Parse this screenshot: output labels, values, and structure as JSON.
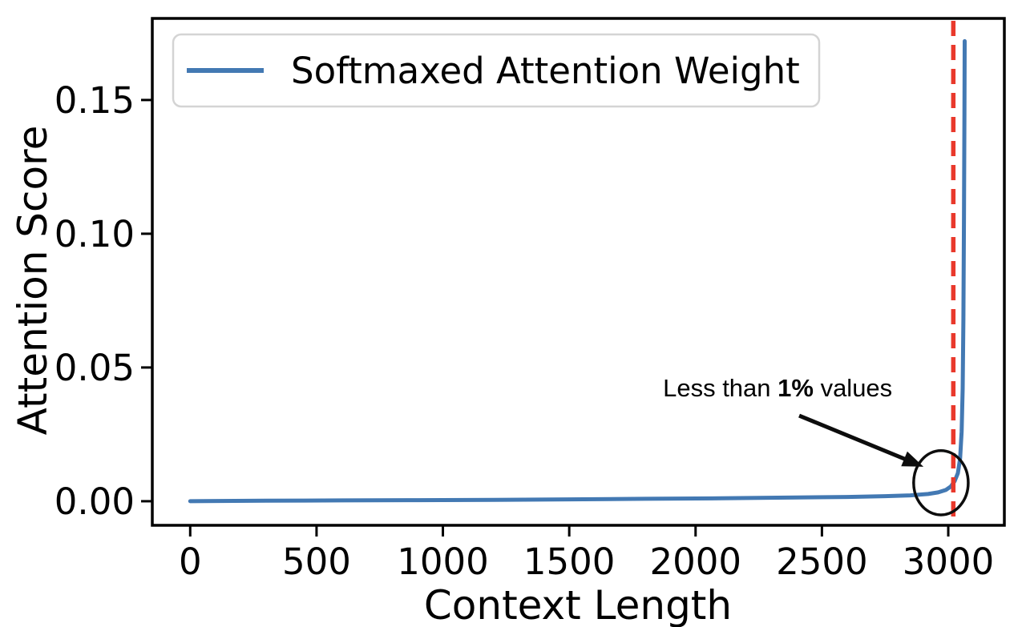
{
  "chart_data": {
    "type": "line",
    "title": "",
    "xlabel": "Context Length",
    "ylabel": "Attention Score",
    "xlim": [
      -150,
      3222
    ],
    "ylim": [
      -0.009,
      0.1805
    ],
    "grid": false,
    "x_ticks": [
      {
        "value": 0,
        "label": "0"
      },
      {
        "value": 500,
        "label": "500"
      },
      {
        "value": 1000,
        "label": "1000"
      },
      {
        "value": 1500,
        "label": "1500"
      },
      {
        "value": 2000,
        "label": "2000"
      },
      {
        "value": 2500,
        "label": "2500"
      },
      {
        "value": 3000,
        "label": "3000"
      }
    ],
    "y_ticks": [
      {
        "value": 0.0,
        "label": "0.00"
      },
      {
        "value": 0.05,
        "label": "0.05"
      },
      {
        "value": 0.1,
        "label": "0.10"
      },
      {
        "value": 0.15,
        "label": "0.15"
      }
    ],
    "legend": {
      "position": "upper left",
      "label": "Softmaxed Attention Weight"
    },
    "series": [
      {
        "name": "Softmaxed Attention Weight",
        "color": "#4379b3",
        "line_width": 5,
        "points": [
          [
            0,
            0.0
          ],
          [
            300,
            0.0002
          ],
          [
            600,
            0.0003
          ],
          [
            900,
            0.0004
          ],
          [
            1200,
            0.0005
          ],
          [
            1500,
            0.0007
          ],
          [
            1800,
            0.0009
          ],
          [
            2100,
            0.0011
          ],
          [
            2400,
            0.0014
          ],
          [
            2600,
            0.0016
          ],
          [
            2750,
            0.0019
          ],
          [
            2850,
            0.0022
          ],
          [
            2920,
            0.0027
          ],
          [
            2960,
            0.0033
          ],
          [
            2990,
            0.0042
          ],
          [
            3010,
            0.0055
          ],
          [
            3025,
            0.0075
          ],
          [
            3038,
            0.0105
          ],
          [
            3047,
            0.016
          ],
          [
            3053,
            0.026
          ],
          [
            3057,
            0.042
          ],
          [
            3060,
            0.068
          ],
          [
            3062,
            0.105
          ],
          [
            3064,
            0.145
          ],
          [
            3065,
            0.172
          ]
        ]
      }
    ],
    "vline": {
      "x": 3020,
      "color": "#e9392c",
      "style": "dashed",
      "width": 5.5
    },
    "annotation": {
      "text_prefix": "Less than ",
      "text_bold": "1%",
      "text_suffix": " values",
      "text_pos": [
        1871,
        0.0392
      ],
      "arrow": {
        "from": [
          2410,
          0.032
        ],
        "to": [
          2902,
          0.0129
        ]
      },
      "circle": {
        "x": 2971,
        "y": 0.0069,
        "rx": 108,
        "ry": 0.012
      },
      "color": "#0d0d0d"
    }
  }
}
